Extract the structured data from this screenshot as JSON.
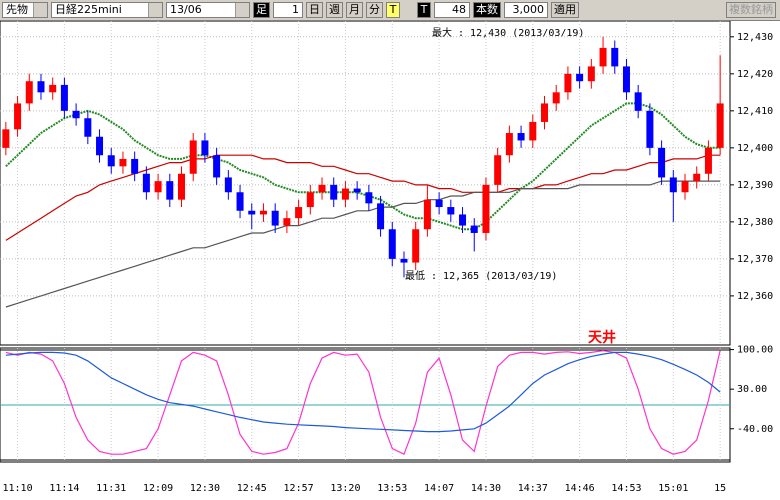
{
  "toolbar": {
    "market": "先物",
    "symbol": "日経225mini",
    "contract": "13/06",
    "bar_label": "足",
    "bar_value": "1",
    "periods": [
      "日",
      "週",
      "月",
      "分",
      "T"
    ],
    "tick_label": "T",
    "count": "48",
    "count_label": "本数",
    "bars": "3,000",
    "apply": "適用",
    "multi": "複数銘柄"
  },
  "chart_data": {
    "type": "candlestick",
    "categories": [
      null,
      "11:10",
      null,
      null,
      null,
      "11:14",
      null,
      null,
      null,
      "11:31",
      null,
      null,
      null,
      "12:09",
      null,
      null,
      null,
      "12:30",
      null,
      null,
      null,
      "12:45",
      null,
      null,
      null,
      "12:57",
      null,
      null,
      null,
      "13:20",
      null,
      null,
      null,
      "13:53",
      null,
      null,
      null,
      "14:07",
      null,
      null,
      null,
      "14:30",
      null,
      null,
      null,
      "14:37",
      null,
      null,
      null,
      "14:46",
      null,
      null,
      null,
      "14:53",
      null,
      null,
      null,
      "15:01",
      null,
      null,
      null,
      "15"
    ],
    "open": [
      12400,
      12405,
      12412,
      12418,
      12415,
      12417,
      12410,
      12408,
      12403,
      12398,
      12395,
      12397,
      12393,
      12388,
      12391,
      12386,
      12393,
      12402,
      12398,
      12392,
      12388,
      12383,
      12382,
      12383,
      12379,
      12381,
      12384,
      12388,
      12390,
      12386,
      12389,
      12388,
      12385,
      12378,
      12370,
      12369,
      12378,
      12386,
      12384,
      12382,
      12379,
      12377,
      12390,
      12398,
      12404,
      12402,
      12407,
      12412,
      12415,
      12420,
      12418,
      12422,
      12427,
      12422,
      12415,
      12410,
      12400,
      12392,
      12388,
      12391,
      12393,
      12400
    ],
    "high": [
      12407,
      12414,
      12420,
      12420,
      12419,
      12419,
      12412,
      12410,
      12405,
      12400,
      12399,
      12399,
      12395,
      12393,
      12393,
      12395,
      12404,
      12404,
      12400,
      12394,
      12390,
      12385,
      12385,
      12385,
      12383,
      12386,
      12390,
      12392,
      12392,
      12391,
      12391,
      12390,
      12387,
      12380,
      12372,
      12380,
      12390,
      12388,
      12386,
      12384,
      12381,
      12392,
      12400,
      12406,
      12406,
      12409,
      12414,
      12417,
      12422,
      12422,
      12424,
      12430,
      12429,
      12424,
      12417,
      12412,
      12402,
      12394,
      12393,
      12395,
      12402,
      12425
    ],
    "low": [
      12398,
      12403,
      12410,
      12413,
      12413,
      12408,
      12406,
      12401,
      12396,
      12393,
      12393,
      12391,
      12386,
      12386,
      12384,
      12384,
      12391,
      12396,
      12390,
      12386,
      12381,
      12378,
      12380,
      12377,
      12377,
      12379,
      12382,
      12386,
      12384,
      12384,
      12386,
      12383,
      12376,
      12368,
      12365,
      12367,
      12376,
      12382,
      12380,
      12377,
      12372,
      12375,
      12388,
      12396,
      12400,
      12400,
      12405,
      12410,
      12413,
      12416,
      12416,
      12420,
      12420,
      12413,
      12408,
      12398,
      12390,
      12380,
      12386,
      12389,
      12391,
      12398
    ],
    "close": [
      12405,
      12412,
      12418,
      12415,
      12417,
      12410,
      12408,
      12403,
      12398,
      12395,
      12397,
      12393,
      12388,
      12391,
      12386,
      12393,
      12402,
      12398,
      12392,
      12388,
      12383,
      12382,
      12383,
      12379,
      12381,
      12384,
      12388,
      12390,
      12386,
      12389,
      12388,
      12385,
      12378,
      12370,
      12369,
      12378,
      12386,
      12384,
      12382,
      12379,
      12377,
      12390,
      12398,
      12404,
      12402,
      12407,
      12412,
      12415,
      12420,
      12418,
      12422,
      12427,
      12422,
      12415,
      12410,
      12400,
      12392,
      12388,
      12391,
      12393,
      12400,
      12412
    ],
    "up_color": "#ff0000",
    "down_color": "#0000ff",
    "lines": [
      {
        "color": "#228b22",
        "values": [
          12395,
          12398,
          12401,
          12404,
          12406,
          12408,
          12409,
          12410,
          12409,
          12407,
          12405,
          12402,
          12400,
          12398,
          12397,
          12397,
          12398,
          12398,
          12397,
          12396,
          12394,
          12393,
          12392,
          12390,
          12389,
          12388,
          12388,
          12388,
          12388,
          12388,
          12388,
          12387,
          12386,
          12384,
          12382,
          12381,
          12381,
          12380,
          12379,
          12378,
          12378,
          12380,
          12383,
          12386,
          12389,
          12391,
          12394,
          12397,
          12400,
          12403,
          12406,
          12408,
          12410,
          12412,
          12412,
          12411,
          12409,
          12406,
          12403,
          12401,
          12400,
          12400
        ]
      },
      {
        "color": "#cc0000",
        "values": [
          12375,
          12377,
          12379,
          12381,
          12383,
          12385,
          12387,
          12388,
          12390,
          12391,
          12392,
          12393,
          12394,
          12395,
          12396,
          12396,
          12397,
          12397,
          12398,
          12398,
          12398,
          12398,
          12397,
          12397,
          12396,
          12396,
          12396,
          12395,
          12395,
          12394,
          12393,
          12393,
          12392,
          12391,
          12391,
          12390,
          12390,
          12389,
          12389,
          12388,
          12388,
          12388,
          12388,
          12389,
          12389,
          12389,
          12390,
          12390,
          12391,
          12392,
          12393,
          12393,
          12394,
          12394,
          12395,
          12396,
          12396,
          12397,
          12397,
          12397,
          12398,
          12398
        ]
      },
      {
        "color": "#555555",
        "values": [
          12357,
          12358,
          12359,
          12360,
          12361,
          12362,
          12363,
          12364,
          12365,
          12366,
          12367,
          12368,
          12369,
          12370,
          12371,
          12372,
          12373,
          12373,
          12374,
          12375,
          12376,
          12377,
          12377,
          12378,
          12379,
          12379,
          12380,
          12381,
          12381,
          12382,
          12383,
          12383,
          12384,
          12384,
          12385,
          12385,
          12386,
          12386,
          12387,
          12387,
          12388,
          12388,
          12388,
          12388,
          12389,
          12389,
          12389,
          12389,
          12389,
          12390,
          12390,
          12390,
          12390,
          12390,
          12390,
          12390,
          12391,
          12391,
          12391,
          12391,
          12391,
          12391
        ]
      }
    ],
    "ylim": [
      12347,
      12434
    ],
    "yticks": [
      {
        "value": 12360,
        "label": "12,360"
      },
      {
        "value": 12370,
        "label": "12,370"
      },
      {
        "value": 12380,
        "label": "12,380"
      },
      {
        "value": 12390,
        "label": "12,390"
      },
      {
        "value": 12400,
        "label": "12,400"
      },
      {
        "value": 12410,
        "label": "12,410"
      },
      {
        "value": 12420,
        "label": "12,420"
      },
      {
        "value": 12430,
        "label": "12,430"
      }
    ],
    "annotations": {
      "max": "最大 : 12,430 (2013/03/19)",
      "min": "最低 : 12,365 (2013/03/19)",
      "peak": "天井"
    },
    "oscillator": {
      "series": [
        {
          "color": "#ff33cc",
          "values": [
            95,
            90,
            95,
            92,
            80,
            40,
            -20,
            -60,
            -80,
            -85,
            -85,
            -80,
            -75,
            -40,
            20,
            80,
            95,
            90,
            80,
            20,
            -50,
            -80,
            -85,
            -82,
            -75,
            -30,
            40,
            85,
            95,
            90,
            92,
            60,
            -20,
            -75,
            -85,
            -30,
            60,
            85,
            20,
            -60,
            -80,
            0,
            70,
            90,
            95,
            95,
            92,
            95,
            96,
            93,
            95,
            98,
            95,
            85,
            30,
            -40,
            -75,
            -85,
            -80,
            -60,
            10,
            98
          ]
        },
        {
          "color": "#1e5adc",
          "values": [
            90,
            92,
            94,
            95,
            95,
            94,
            90,
            80,
            65,
            50,
            40,
            30,
            20,
            12,
            6,
            3,
            0,
            -5,
            -10,
            -15,
            -20,
            -24,
            -28,
            -30,
            -32,
            -33,
            -34,
            -35,
            -36,
            -38,
            -39,
            -40,
            -41,
            -42,
            -43,
            -44,
            -45,
            -45,
            -44,
            -42,
            -40,
            -30,
            -15,
            0,
            20,
            40,
            55,
            65,
            75,
            82,
            88,
            92,
            95,
            95,
            92,
            88,
            82,
            74,
            65,
            55,
            42,
            25
          ]
        }
      ],
      "ylim": [
        -97,
        101
      ],
      "yticks": [
        {
          "value": 100,
          "label": "100.00"
        },
        {
          "value": 30,
          "label": "30.00"
        },
        {
          "value": -40,
          "label": "-40.00"
        }
      ]
    },
    "grid": true
  }
}
